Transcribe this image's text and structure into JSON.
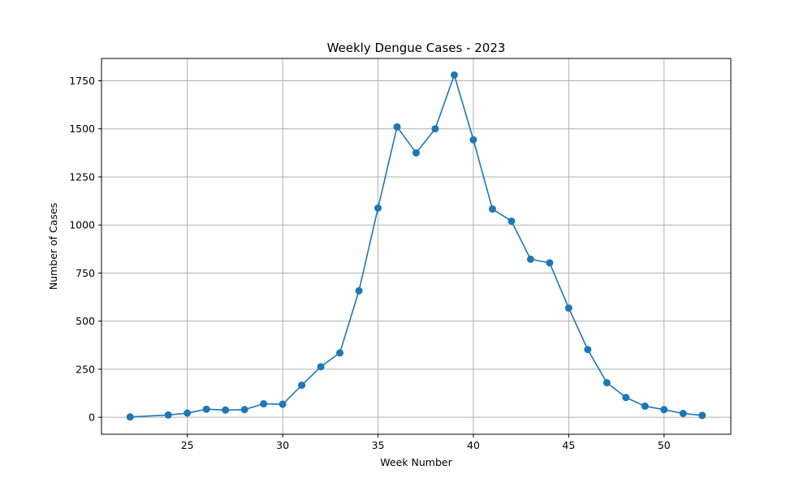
{
  "chart_data": {
    "type": "line",
    "title": "Weekly Dengue Cases - 2023",
    "xlabel": "Week Number",
    "ylabel": "Number of Cases",
    "xlim": [
      20.5,
      53.5
    ],
    "ylim": [
      -88,
      1866
    ],
    "xticks": [
      25,
      30,
      35,
      40,
      45,
      50
    ],
    "yticks": [
      0,
      250,
      500,
      750,
      1000,
      1250,
      1500,
      1750
    ],
    "grid": true,
    "marker": "circle",
    "series_color": "#1f77b4",
    "grid_color": "#b0b0b0",
    "x": [
      22,
      24,
      25,
      26,
      27,
      28,
      29,
      30,
      31,
      32,
      33,
      34,
      35,
      36,
      37,
      38,
      39,
      40,
      41,
      42,
      43,
      44,
      45,
      46,
      47,
      48,
      49,
      50,
      51,
      52
    ],
    "series": [
      {
        "values": [
          2,
          12,
          22,
          42,
          38,
          40,
          70,
          68,
          167,
          263,
          335,
          658,
          1088,
          1510,
          1375,
          1500,
          1780,
          1443,
          1083,
          1020,
          822,
          803,
          568,
          352,
          180,
          103,
          58,
          40,
          20,
          10
        ]
      }
    ]
  }
}
